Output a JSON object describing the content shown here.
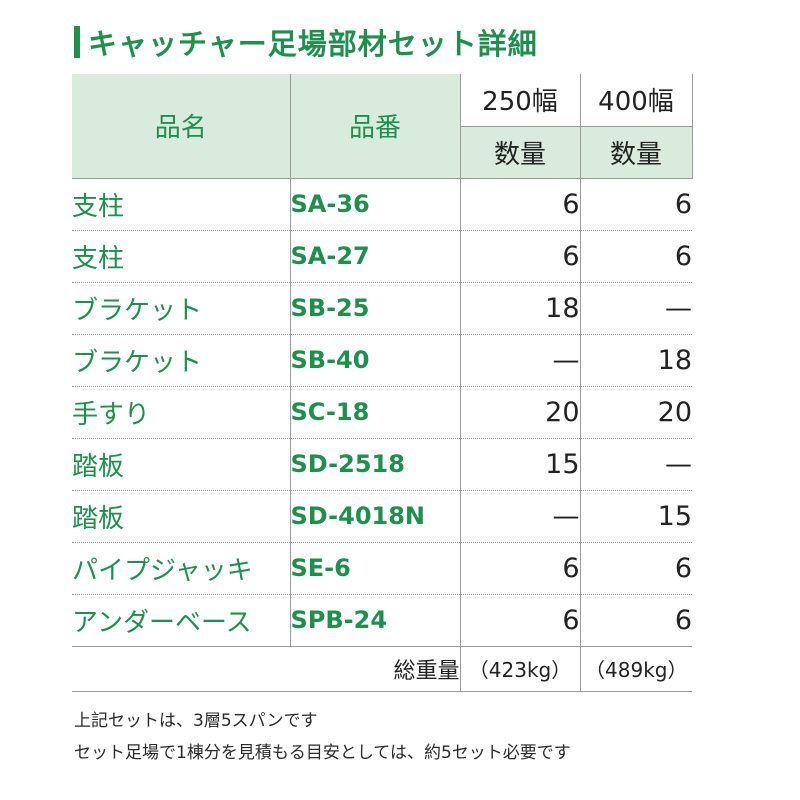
{
  "title": "キャッチャー足場部材セット詳細",
  "header": {
    "col_name": "品名",
    "col_code": "品番",
    "width_250": "250幅",
    "width_400": "400幅",
    "qty_label": "数量"
  },
  "rows": [
    {
      "name": "支柱",
      "code": "SA-36",
      "qty_250": "6",
      "qty_400": "6"
    },
    {
      "name": "支柱",
      "code": "SA-27",
      "qty_250": "6",
      "qty_400": "6"
    },
    {
      "name": "ブラケット",
      "code": "SB-25",
      "qty_250": "18",
      "qty_400": "—"
    },
    {
      "name": "ブラケット",
      "code": "SB-40",
      "qty_250": "—",
      "qty_400": "18"
    },
    {
      "name": "手すり",
      "code": "SC-18",
      "qty_250": "20",
      "qty_400": "20"
    },
    {
      "name": "踏板",
      "code": "SD-2518",
      "qty_250": "15",
      "qty_400": "—"
    },
    {
      "name": "踏板",
      "code": "SD-4018N",
      "qty_250": "—",
      "qty_400": "15"
    },
    {
      "name": "パイプジャッキ",
      "code": "SE-6",
      "qty_250": "6",
      "qty_400": "6"
    },
    {
      "name": "アンダーベース",
      "code": "SPB-24",
      "qty_250": "6",
      "qty_400": "6"
    }
  ],
  "total": {
    "label": "総重量",
    "weight_250": "（423kg）",
    "weight_400": "（489kg）"
  },
  "notes": [
    "上記セットは、3層5スパンです",
    "セット足場で1棟分を見積もる目安としては、約5セット必要です"
  ],
  "colors": {
    "accent": "#1f8f4e",
    "header_bg": "#d8ebdc"
  }
}
